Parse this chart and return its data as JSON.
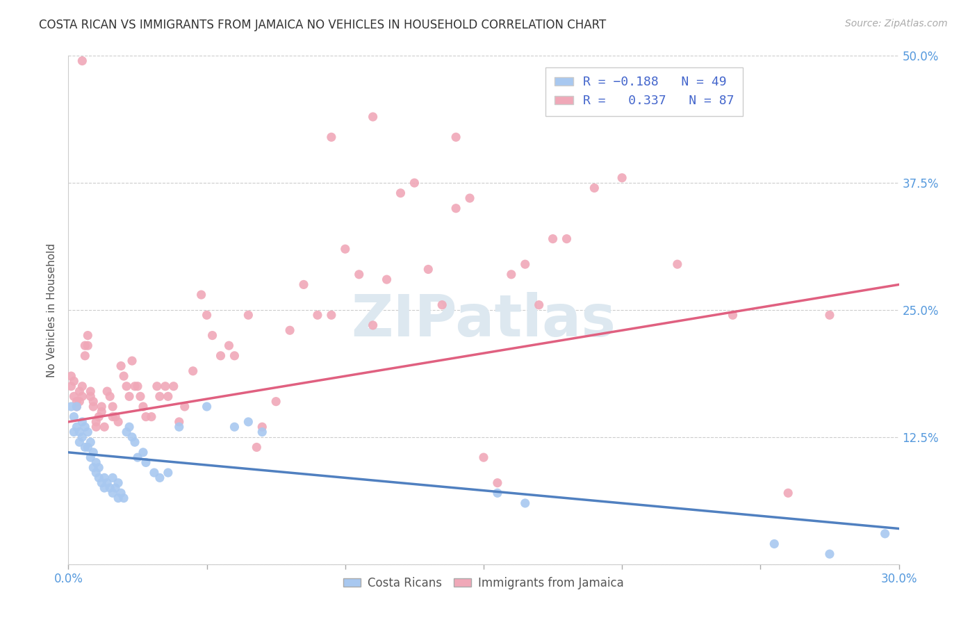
{
  "title": "COSTA RICAN VS IMMIGRANTS FROM JAMAICA NO VEHICLES IN HOUSEHOLD CORRELATION CHART",
  "source": "Source: ZipAtlas.com",
  "ylabel": "No Vehicles in Household",
  "xlim": [
    0.0,
    0.3
  ],
  "ylim": [
    0.0,
    0.5
  ],
  "yticks": [
    0.0,
    0.125,
    0.25,
    0.375,
    0.5
  ],
  "ytick_labels": [
    "",
    "12.5%",
    "25.0%",
    "37.5%",
    "50.0%"
  ],
  "xtick_positions": [
    0.0,
    0.05,
    0.1,
    0.15,
    0.2,
    0.25,
    0.3
  ],
  "color_blue": "#a8c8f0",
  "color_pink": "#f0a8b8",
  "line_color_blue": "#5080c0",
  "line_color_pink": "#e06080",
  "watermark_color": "#dde8f0",
  "bg_color": "#ffffff",
  "grid_color": "#cccccc",
  "axis_label_color": "#5599dd",
  "title_color": "#333333",
  "source_color": "#aaaaaa",
  "legend_label_color": "#4466cc",
  "ylabel_color": "#555555",
  "blue_scatter": [
    [
      0.001,
      0.155
    ],
    [
      0.002,
      0.145
    ],
    [
      0.002,
      0.13
    ],
    [
      0.003,
      0.155
    ],
    [
      0.003,
      0.135
    ],
    [
      0.004,
      0.13
    ],
    [
      0.004,
      0.12
    ],
    [
      0.005,
      0.14
    ],
    [
      0.005,
      0.125
    ],
    [
      0.006,
      0.135
    ],
    [
      0.006,
      0.115
    ],
    [
      0.007,
      0.13
    ],
    [
      0.007,
      0.115
    ],
    [
      0.008,
      0.105
    ],
    [
      0.008,
      0.12
    ],
    [
      0.009,
      0.11
    ],
    [
      0.009,
      0.095
    ],
    [
      0.01,
      0.1
    ],
    [
      0.01,
      0.09
    ],
    [
      0.011,
      0.085
    ],
    [
      0.011,
      0.095
    ],
    [
      0.012,
      0.08
    ],
    [
      0.013,
      0.085
    ],
    [
      0.013,
      0.075
    ],
    [
      0.014,
      0.08
    ],
    [
      0.015,
      0.075
    ],
    [
      0.016,
      0.085
    ],
    [
      0.016,
      0.07
    ],
    [
      0.017,
      0.075
    ],
    [
      0.018,
      0.065
    ],
    [
      0.018,
      0.08
    ],
    [
      0.019,
      0.07
    ],
    [
      0.02,
      0.065
    ],
    [
      0.021,
      0.13
    ],
    [
      0.022,
      0.135
    ],
    [
      0.023,
      0.125
    ],
    [
      0.024,
      0.12
    ],
    [
      0.025,
      0.105
    ],
    [
      0.027,
      0.11
    ],
    [
      0.028,
      0.1
    ],
    [
      0.031,
      0.09
    ],
    [
      0.033,
      0.085
    ],
    [
      0.036,
      0.09
    ],
    [
      0.04,
      0.135
    ],
    [
      0.05,
      0.155
    ],
    [
      0.06,
      0.135
    ],
    [
      0.065,
      0.14
    ],
    [
      0.07,
      0.13
    ],
    [
      0.155,
      0.07
    ],
    [
      0.165,
      0.06
    ],
    [
      0.255,
      0.02
    ],
    [
      0.275,
      0.01
    ],
    [
      0.295,
      0.03
    ]
  ],
  "pink_scatter": [
    [
      0.001,
      0.185
    ],
    [
      0.001,
      0.175
    ],
    [
      0.002,
      0.18
    ],
    [
      0.002,
      0.165
    ],
    [
      0.003,
      0.16
    ],
    [
      0.003,
      0.155
    ],
    [
      0.004,
      0.17
    ],
    [
      0.004,
      0.16
    ],
    [
      0.005,
      0.175
    ],
    [
      0.005,
      0.165
    ],
    [
      0.006,
      0.215
    ],
    [
      0.006,
      0.205
    ],
    [
      0.007,
      0.225
    ],
    [
      0.007,
      0.215
    ],
    [
      0.008,
      0.17
    ],
    [
      0.008,
      0.165
    ],
    [
      0.009,
      0.155
    ],
    [
      0.009,
      0.16
    ],
    [
      0.01,
      0.14
    ],
    [
      0.01,
      0.135
    ],
    [
      0.011,
      0.145
    ],
    [
      0.012,
      0.15
    ],
    [
      0.012,
      0.155
    ],
    [
      0.013,
      0.135
    ],
    [
      0.014,
      0.17
    ],
    [
      0.015,
      0.165
    ],
    [
      0.016,
      0.155
    ],
    [
      0.016,
      0.145
    ],
    [
      0.017,
      0.145
    ],
    [
      0.018,
      0.14
    ],
    [
      0.019,
      0.195
    ],
    [
      0.02,
      0.185
    ],
    [
      0.021,
      0.175
    ],
    [
      0.022,
      0.165
    ],
    [
      0.023,
      0.2
    ],
    [
      0.024,
      0.175
    ],
    [
      0.025,
      0.175
    ],
    [
      0.026,
      0.165
    ],
    [
      0.027,
      0.155
    ],
    [
      0.028,
      0.145
    ],
    [
      0.03,
      0.145
    ],
    [
      0.032,
      0.175
    ],
    [
      0.033,
      0.165
    ],
    [
      0.035,
      0.175
    ],
    [
      0.036,
      0.165
    ],
    [
      0.038,
      0.175
    ],
    [
      0.04,
      0.14
    ],
    [
      0.042,
      0.155
    ],
    [
      0.045,
      0.19
    ],
    [
      0.048,
      0.265
    ],
    [
      0.05,
      0.245
    ],
    [
      0.052,
      0.225
    ],
    [
      0.055,
      0.205
    ],
    [
      0.058,
      0.215
    ],
    [
      0.06,
      0.205
    ],
    [
      0.065,
      0.245
    ],
    [
      0.068,
      0.115
    ],
    [
      0.07,
      0.135
    ],
    [
      0.075,
      0.16
    ],
    [
      0.08,
      0.23
    ],
    [
      0.085,
      0.275
    ],
    [
      0.09,
      0.245
    ],
    [
      0.095,
      0.245
    ],
    [
      0.1,
      0.31
    ],
    [
      0.105,
      0.285
    ],
    [
      0.11,
      0.235
    ],
    [
      0.115,
      0.28
    ],
    [
      0.12,
      0.365
    ],
    [
      0.125,
      0.375
    ],
    [
      0.13,
      0.29
    ],
    [
      0.135,
      0.255
    ],
    [
      0.14,
      0.35
    ],
    [
      0.145,
      0.36
    ],
    [
      0.15,
      0.105
    ],
    [
      0.155,
      0.08
    ],
    [
      0.16,
      0.285
    ],
    [
      0.165,
      0.295
    ],
    [
      0.17,
      0.255
    ],
    [
      0.175,
      0.32
    ],
    [
      0.18,
      0.32
    ],
    [
      0.19,
      0.37
    ],
    [
      0.2,
      0.38
    ],
    [
      0.22,
      0.295
    ],
    [
      0.24,
      0.245
    ],
    [
      0.26,
      0.07
    ],
    [
      0.275,
      0.245
    ],
    [
      0.005,
      0.495
    ],
    [
      0.095,
      0.42
    ],
    [
      0.11,
      0.44
    ],
    [
      0.14,
      0.42
    ]
  ],
  "blue_line": {
    "x0": 0.0,
    "x1": 0.3,
    "y0": 0.11,
    "y1": 0.035
  },
  "pink_line": {
    "x0": 0.0,
    "x1": 0.3,
    "y0": 0.14,
    "y1": 0.275
  }
}
